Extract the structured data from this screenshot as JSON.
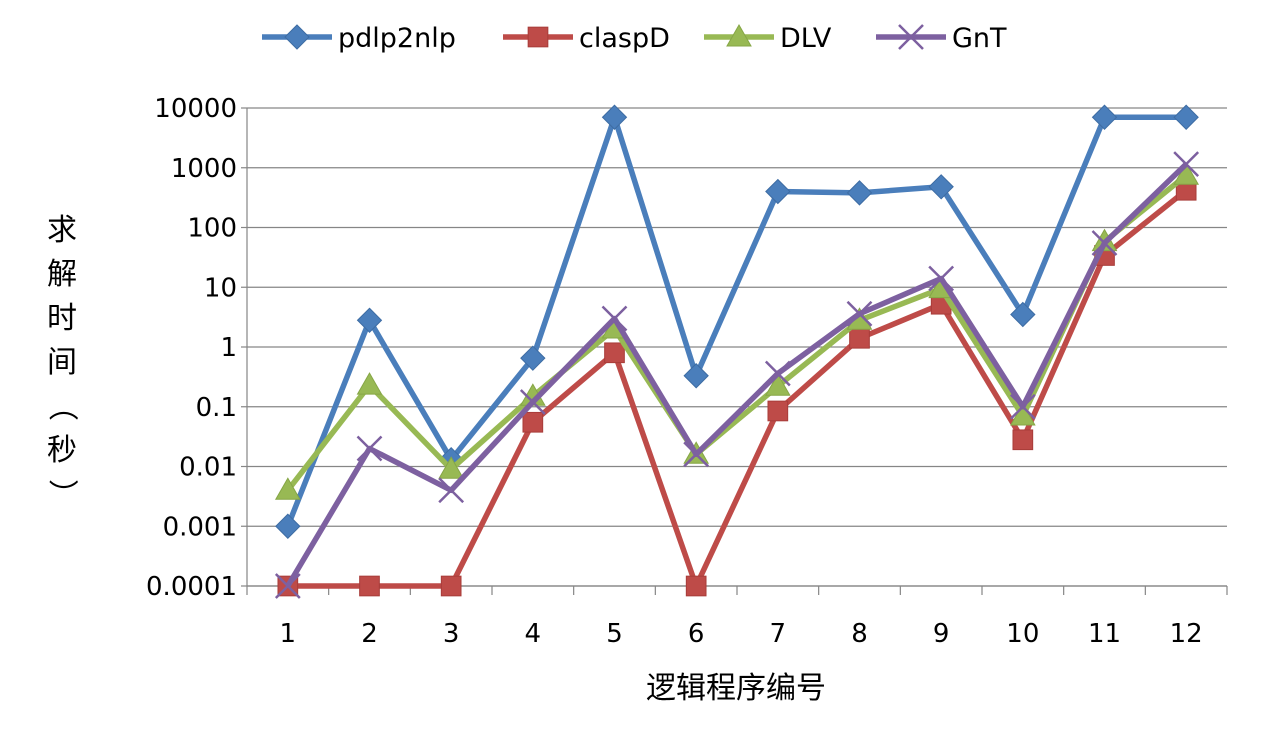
{
  "chart_data": {
    "type": "line",
    "title": "",
    "xlabel": "逻辑程序编号",
    "ylabel": "求解时间（秒）",
    "y_scale": "log",
    "ylim": [
      0.0001,
      10000
    ],
    "y_ticks": [
      "0.0001",
      "0.001",
      "0.01",
      "0.1",
      "1",
      "10",
      "100",
      "1000",
      "10000"
    ],
    "grid": "horizontal",
    "legend_position": "top",
    "categories": [
      "1",
      "2",
      "3",
      "4",
      "5",
      "6",
      "7",
      "8",
      "9",
      "10",
      "11",
      "12"
    ],
    "series": [
      {
        "name": "pdlp2nlp",
        "color": "#4a7ebb",
        "marker": "diamond",
        "values": [
          0.001,
          2.8,
          0.013,
          0.65,
          7000,
          0.33,
          400,
          380,
          480,
          3.5,
          7000,
          7000
        ]
      },
      {
        "name": "claspD",
        "color": "#be4b48",
        "marker": "square",
        "values": [
          0.0001,
          0.0001,
          0.0001,
          0.055,
          0.8,
          0.0001,
          0.085,
          1.4,
          5.2,
          0.028,
          34,
          420
        ]
      },
      {
        "name": "DLV",
        "color": "#98b954",
        "marker": "triangle",
        "values": [
          0.004,
          0.23,
          0.009,
          0.15,
          2.0,
          0.016,
          0.22,
          2.8,
          9.5,
          0.07,
          58,
          750
        ]
      },
      {
        "name": "GnT",
        "color": "#7d60a0",
        "marker": "x",
        "values": [
          0.0001,
          0.02,
          0.004,
          0.12,
          3.0,
          0.016,
          0.36,
          3.6,
          14,
          0.1,
          55,
          1150
        ]
      }
    ]
  }
}
